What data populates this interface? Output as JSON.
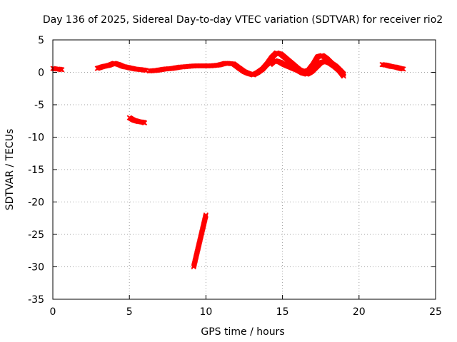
{
  "chart_data": {
    "type": "scatter",
    "title": "Day 136 of 2025, Sidereal Day-to-day VTEC variation (SDTVAR) for receiver rio2",
    "xlabel": "GPS time / hours",
    "ylabel": "SDTVAR / TECUs",
    "xlim": [
      0,
      25
    ],
    "ylim": [
      -35,
      5
    ],
    "xticks": [
      0,
      5,
      10,
      15,
      20,
      25
    ],
    "yticks": [
      5,
      0,
      -5,
      -10,
      -15,
      -20,
      -25,
      -30,
      -35
    ],
    "grid": true,
    "color": "#ff0000",
    "series": [
      {
        "name": "SDTVAR",
        "segments": [
          {
            "x": [
              0.0,
              0.2,
              0.4,
              0.6
            ],
            "y": [
              0.6,
              0.5,
              0.5,
              0.4
            ]
          },
          {
            "x": [
              2.9,
              3.3,
              3.7,
              4.0,
              4.3,
              4.6,
              5.0,
              5.4,
              5.8,
              6.1
            ],
            "y": [
              0.6,
              0.9,
              1.1,
              1.4,
              1.2,
              0.9,
              0.7,
              0.5,
              0.4,
              0.3
            ]
          },
          {
            "x": [
              6.3,
              6.8,
              7.3,
              7.8,
              8.3,
              8.8,
              9.3,
              9.8,
              10.3,
              10.8,
              11.3,
              11.8,
              12.2
            ],
            "y": [
              0.2,
              0.3,
              0.5,
              0.6,
              0.8,
              0.9,
              1.0,
              1.0,
              1.0,
              1.1,
              1.4,
              1.3,
              0.6
            ]
          },
          {
            "x": [
              12.2,
              12.5,
              12.8,
              13.1,
              13.4,
              13.7,
              14.0,
              14.3,
              14.6,
              14.9,
              15.2,
              15.5,
              15.8,
              16.1,
              16.4,
              16.7,
              17.0,
              17.3,
              17.6,
              17.9,
              18.2,
              18.5,
              18.8,
              19.0
            ],
            "y": [
              0.6,
              0.1,
              -0.2,
              -0.4,
              0.0,
              0.5,
              1.3,
              2.3,
              3.0,
              2.8,
              2.2,
              1.6,
              1.0,
              0.4,
              0.1,
              0.3,
              1.2,
              2.4,
              2.6,
              2.1,
              1.4,
              0.9,
              0.2,
              -0.3
            ]
          },
          {
            "x": [
              14.2,
              14.5,
              14.8,
              15.1,
              15.4,
              15.7,
              16.0,
              16.3,
              16.6,
              16.9,
              17.2,
              17.5,
              17.8,
              18.1,
              18.4,
              18.7,
              19.0
            ],
            "y": [
              1.2,
              1.8,
              1.6,
              1.2,
              0.9,
              0.6,
              0.3,
              -0.1,
              -0.3,
              0.1,
              0.8,
              1.5,
              1.7,
              1.4,
              0.9,
              0.3,
              -0.6
            ]
          },
          {
            "x": [
              21.5,
              21.8,
              22.1,
              22.4,
              22.7,
              22.9
            ],
            "y": [
              1.2,
              1.1,
              0.9,
              0.8,
              0.6,
              0.5
            ]
          },
          {
            "x": [
              5.0,
              5.3,
              5.6,
              5.9,
              6.0
            ],
            "y": [
              -7.0,
              -7.4,
              -7.6,
              -7.7,
              -7.8
            ]
          },
          {
            "x": [
              9.2,
              9.4,
              9.6,
              9.8,
              10.0
            ],
            "y": [
              -30.0,
              -28.0,
              -26.0,
              -24.0,
              -22.0
            ]
          }
        ]
      }
    ]
  }
}
